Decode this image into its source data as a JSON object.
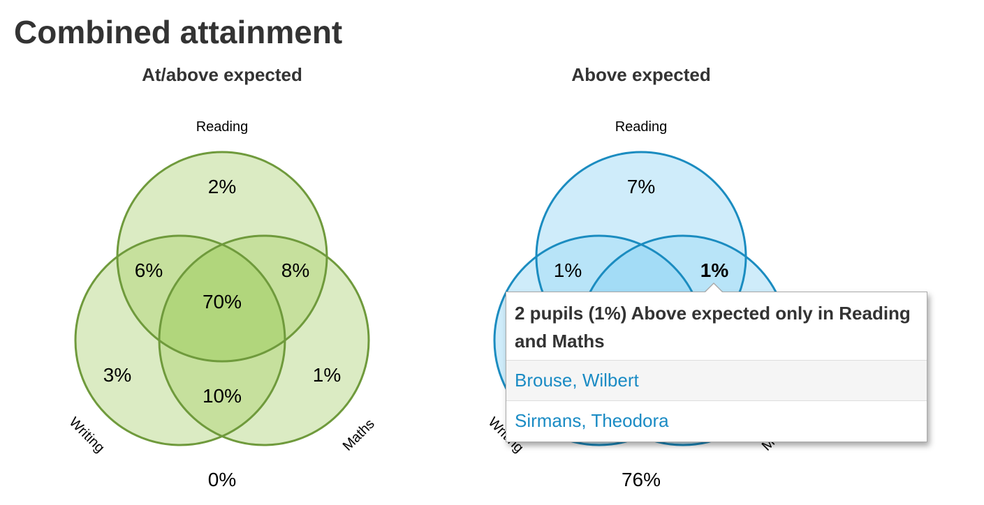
{
  "page": {
    "title": "Combined attainment"
  },
  "chart_data": [
    {
      "type": "venn",
      "title": "At/above expected",
      "set_labels": {
        "reading": "Reading",
        "writing": "Writing",
        "maths": "Maths"
      },
      "regions": {
        "reading_only": "2%",
        "reading_writing": "6%",
        "reading_maths": "8%",
        "all_three": "70%",
        "writing_only": "3%",
        "maths_only": "1%",
        "writing_maths": "10%",
        "none": "0%"
      },
      "colors": {
        "fill": "#dbebc3",
        "stroke": "#6f9a3c",
        "overlap": "#b1d67c"
      }
    },
    {
      "type": "venn",
      "title": "Above expected",
      "set_labels": {
        "reading": "Reading",
        "writing": "Writing",
        "maths": "Maths"
      },
      "regions": {
        "reading_only": "7%",
        "reading_writing": "1%",
        "reading_maths": "1%",
        "none": "76%"
      },
      "highlighted_region": "reading_maths",
      "colors": {
        "fill": "#cfecfa",
        "stroke": "#1b8cc0",
        "overlap": "#a3dcf6"
      }
    }
  ],
  "popover": {
    "header": "2 pupils (1%) Above expected only in Reading and Maths",
    "pupils": [
      "Brouse, Wilbert",
      "Sirmans, Theodora"
    ],
    "link_color": "#1a8bc4"
  }
}
